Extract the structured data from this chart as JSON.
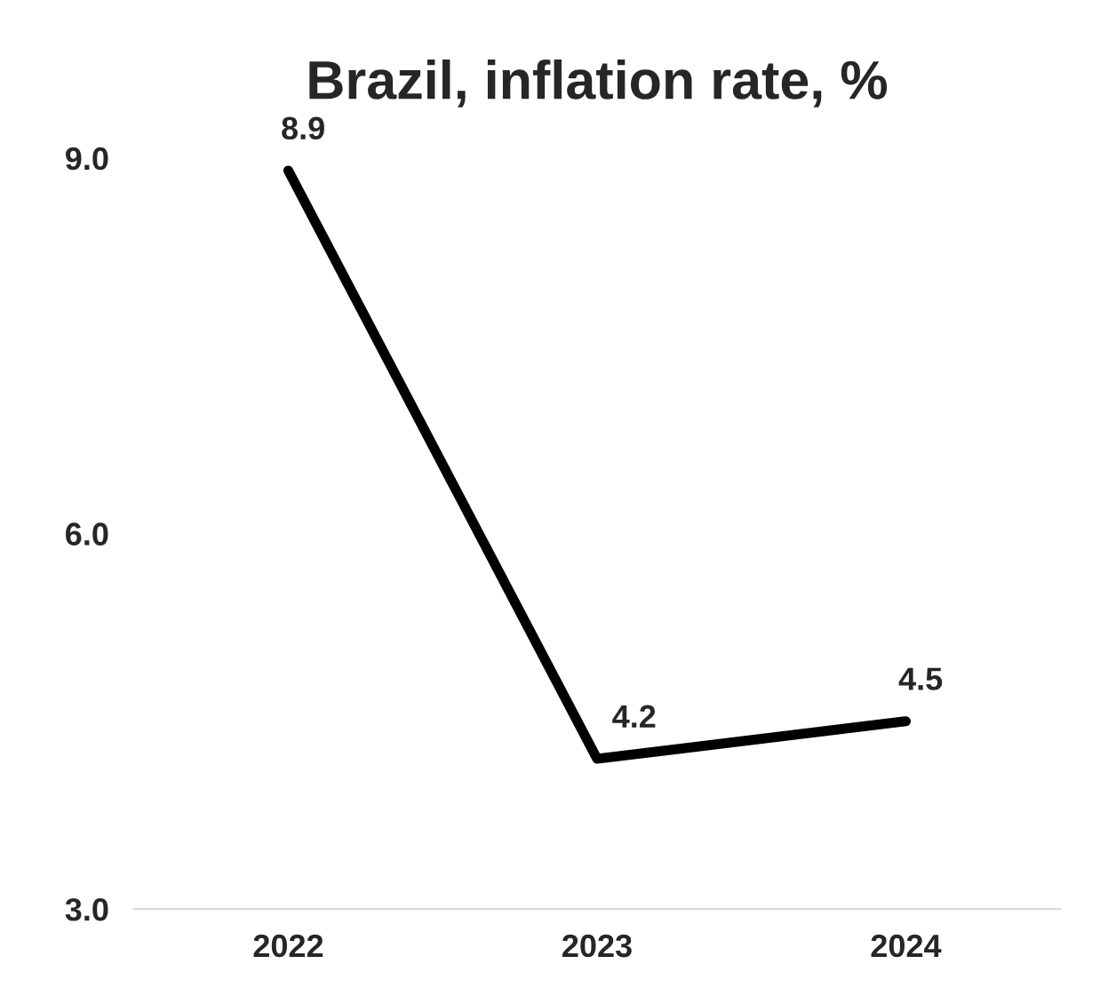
{
  "chart_data": {
    "type": "line",
    "title": "Brazil, inflation rate, %",
    "categories": [
      "2022",
      "2023",
      "2024"
    ],
    "values": [
      8.9,
      4.2,
      4.5
    ],
    "color": "#000000",
    "ylim": [
      3,
      9
    ],
    "yticks": [
      {
        "value": 3,
        "label": "3.0"
      },
      {
        "value": 6,
        "label": "6.0"
      },
      {
        "value": 9,
        "label": "9.0"
      }
    ],
    "data_labels": true,
    "grid": false,
    "legend": false,
    "marker": "none",
    "line_style": "solid"
  }
}
